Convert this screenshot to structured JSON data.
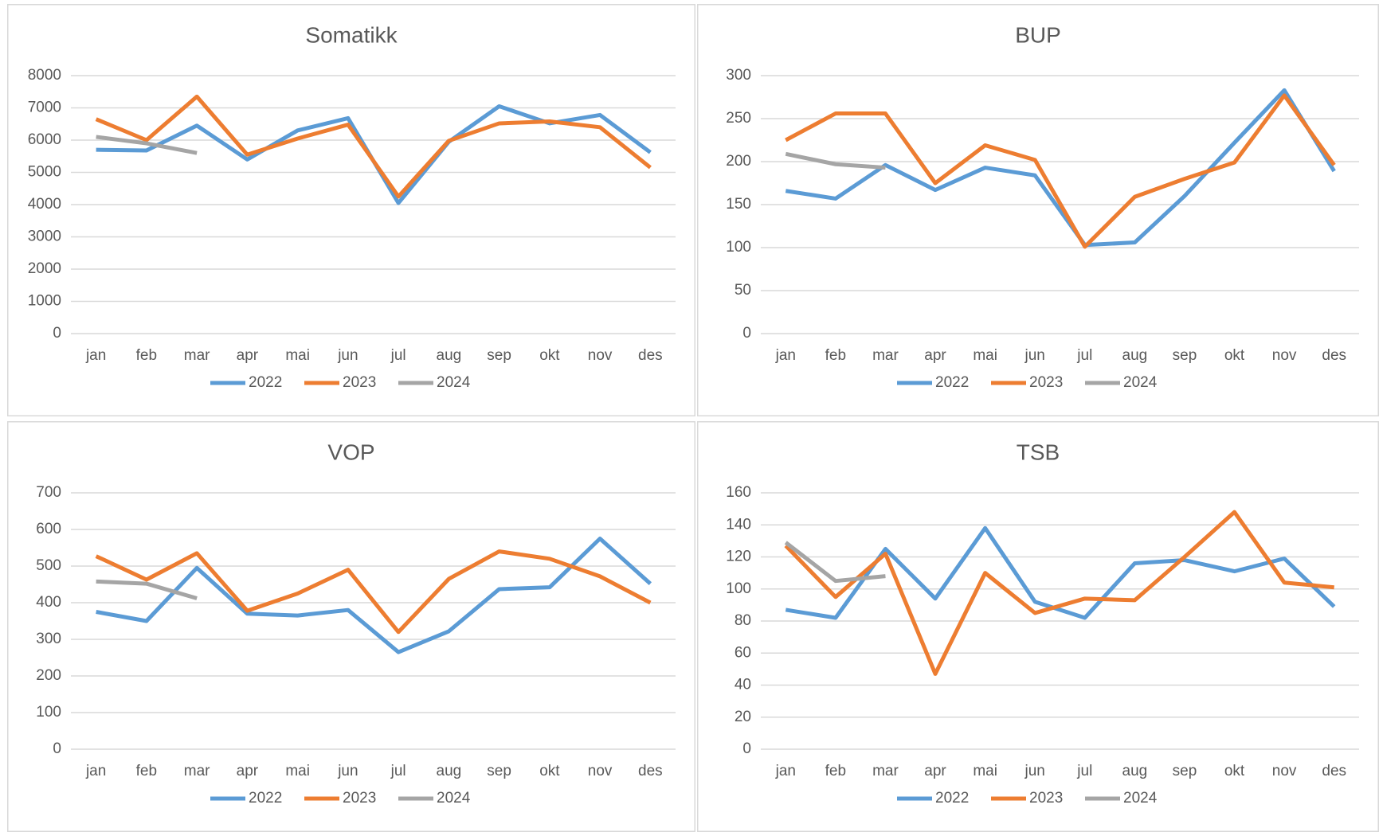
{
  "chart_data": [
    {
      "type": "line",
      "title": "Somatikk",
      "categories": [
        "jan",
        "feb",
        "mar",
        "apr",
        "mai",
        "jun",
        "jul",
        "aug",
        "sep",
        "okt",
        "nov",
        "des"
      ],
      "series": [
        {
          "name": "2022",
          "color": "#5b9bd5",
          "values": [
            5700,
            5680,
            6450,
            5400,
            6300,
            6680,
            4050,
            5950,
            7050,
            6520,
            6780,
            5620
          ]
        },
        {
          "name": "2023",
          "color": "#ed7d31",
          "values": [
            6650,
            6000,
            7350,
            5550,
            6050,
            6480,
            4250,
            5980,
            6520,
            6580,
            6400,
            5150
          ]
        },
        {
          "name": "2024",
          "color": "#a5a5a5",
          "values": [
            6100,
            5900,
            5600,
            null,
            null,
            null,
            null,
            null,
            null,
            null,
            null,
            null
          ]
        }
      ],
      "ylim": [
        0,
        8000
      ],
      "yticks": [
        0,
        1000,
        2000,
        3000,
        4000,
        5000,
        6000,
        7000,
        8000
      ],
      "grid": true,
      "legend": "bottom"
    },
    {
      "type": "line",
      "title": "BUP",
      "categories": [
        "jan",
        "feb",
        "mar",
        "apr",
        "mai",
        "jun",
        "jul",
        "aug",
        "sep",
        "okt",
        "nov",
        "des"
      ],
      "series": [
        {
          "name": "2022",
          "color": "#5b9bd5",
          "values": [
            166,
            157,
            196,
            167,
            193,
            184,
            103,
            106,
            160,
            222,
            283,
            189
          ]
        },
        {
          "name": "2023",
          "color": "#ed7d31",
          "values": [
            225,
            256,
            256,
            175,
            219,
            202,
            101,
            159,
            180,
            199,
            277,
            196
          ]
        },
        {
          "name": "2024",
          "color": "#a5a5a5",
          "values": [
            209,
            197,
            193,
            null,
            null,
            null,
            null,
            null,
            null,
            null,
            null,
            null
          ]
        }
      ],
      "ylim": [
        0,
        300
      ],
      "yticks": [
        0,
        50,
        100,
        150,
        200,
        250,
        300
      ],
      "grid": true,
      "legend": "bottom"
    },
    {
      "type": "line",
      "title": "VOP",
      "categories": [
        "jan",
        "feb",
        "mar",
        "apr",
        "mai",
        "jun",
        "jul",
        "aug",
        "sep",
        "okt",
        "nov",
        "des"
      ],
      "series": [
        {
          "name": "2022",
          "color": "#5b9bd5",
          "values": [
            375,
            350,
            495,
            370,
            365,
            380,
            265,
            322,
            437,
            442,
            575,
            452
          ]
        },
        {
          "name": "2023",
          "color": "#ed7d31",
          "values": [
            527,
            463,
            535,
            378,
            425,
            490,
            320,
            465,
            540,
            520,
            472,
            400
          ]
        },
        {
          "name": "2024",
          "color": "#a5a5a5",
          "values": [
            458,
            452,
            412,
            null,
            null,
            null,
            null,
            null,
            null,
            null,
            null,
            null
          ]
        }
      ],
      "ylim": [
        0,
        700
      ],
      "yticks": [
        0,
        100,
        200,
        300,
        400,
        500,
        600,
        700
      ],
      "grid": true,
      "legend": "bottom"
    },
    {
      "type": "line",
      "title": "TSB",
      "categories": [
        "jan",
        "feb",
        "mar",
        "apr",
        "mai",
        "jun",
        "jul",
        "aug",
        "sep",
        "okt",
        "nov",
        "des"
      ],
      "series": [
        {
          "name": "2022",
          "color": "#5b9bd5",
          "values": [
            87,
            82,
            125,
            94,
            138,
            92,
            82,
            116,
            118,
            111,
            119,
            89
          ]
        },
        {
          "name": "2023",
          "color": "#ed7d31",
          "values": [
            127,
            95,
            122,
            47,
            110,
            85,
            94,
            93,
            120,
            148,
            104,
            101
          ]
        },
        {
          "name": "2024",
          "color": "#a5a5a5",
          "values": [
            129,
            105,
            108,
            null,
            null,
            null,
            null,
            null,
            null,
            null,
            null,
            null
          ]
        }
      ],
      "ylim": [
        0,
        160
      ],
      "yticks": [
        0,
        20,
        40,
        60,
        80,
        100,
        120,
        140,
        160
      ],
      "grid": true,
      "legend": "bottom"
    }
  ]
}
